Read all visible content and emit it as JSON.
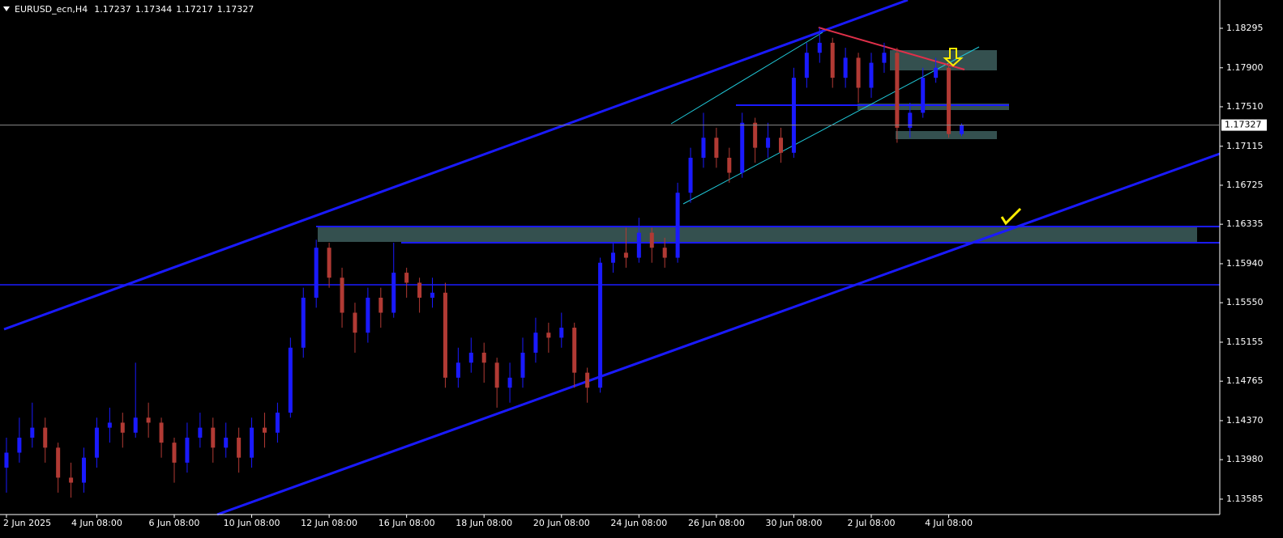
{
  "chart_data": {
    "type": "candlestick",
    "title": "EURUSD_ecn,H4",
    "bull_color": "#1a1aff",
    "bear_color": "#b13a34",
    "grid": false,
    "ylim": [
      1.13431,
      1.18578
    ],
    "yticks": [
      1.18295,
      {
        "value": 1.179,
        "label": "1.17900"
      },
      {
        "value": 1.1751,
        "label": "1.17510"
      },
      1.17115,
      1.16725,
      1.16335,
      {
        "value": 1.1594,
        "label": "1.15940"
      },
      {
        "value": 1.1555,
        "label": "1.15550"
      },
      1.15155,
      1.14765,
      {
        "value": 1.1437,
        "label": "1.14370"
      },
      {
        "value": 1.1398,
        "label": "1.13980"
      },
      1.13585
    ],
    "xlim": [
      -1,
      188
    ],
    "xticks": [
      {
        "value": 0,
        "label": "2 Jun 2025"
      },
      {
        "value": 14,
        "label": "4 Jun 08:00"
      },
      {
        "value": 26,
        "label": "6 Jun 08:00"
      },
      {
        "value": 38,
        "label": "10 Jun 08:00"
      },
      {
        "value": 50,
        "label": "12 Jun 08:00"
      },
      {
        "value": 62,
        "label": "16 Jun 08:00"
      },
      {
        "value": 74,
        "label": "18 Jun 08:00"
      },
      {
        "value": 86,
        "label": "20 Jun 08:00"
      },
      {
        "value": 98,
        "label": "24 Jun 08:00"
      },
      {
        "value": 110,
        "label": "26 Jun 08:00"
      },
      {
        "value": 122,
        "label": "30 Jun 08:00"
      },
      {
        "value": 134,
        "label": "2 Jul 08:00"
      },
      {
        "value": 146,
        "label": "4 Jul 08:00"
      }
    ],
    "x": [
      0,
      2,
      4,
      6,
      8,
      10,
      12,
      14,
      16,
      18,
      20,
      22,
      24,
      26,
      28,
      30,
      32,
      34,
      36,
      38,
      40,
      42,
      44,
      46,
      48,
      50,
      52,
      54,
      56,
      58,
      60,
      62,
      64,
      66,
      68,
      70,
      72,
      74,
      76,
      78,
      80,
      82,
      84,
      86,
      88,
      90,
      92,
      94,
      96,
      98,
      100,
      102,
      104,
      106,
      108,
      110,
      112,
      114,
      116,
      118,
      120,
      122,
      124,
      126,
      128,
      130,
      132,
      134,
      136,
      138,
      140,
      142,
      144,
      146,
      148
    ],
    "open": [
      1.139,
      1.1405,
      1.142,
      1.143,
      1.141,
      1.138,
      1.1375,
      1.14,
      1.143,
      1.1435,
      1.1425,
      1.144,
      1.1435,
      1.1415,
      1.1395,
      1.142,
      1.143,
      1.141,
      1.142,
      1.14,
      1.143,
      1.1425,
      1.1445,
      1.151,
      1.156,
      1.161,
      1.158,
      1.1545,
      1.1525,
      1.156,
      1.1545,
      1.1585,
      1.1575,
      1.156,
      1.1565,
      1.148,
      1.1495,
      1.1505,
      1.1495,
      1.147,
      1.148,
      1.1505,
      1.1525,
      1.152,
      1.153,
      1.1485,
      1.147,
      1.1595,
      1.1605,
      1.16,
      1.1625,
      1.161,
      1.16,
      1.1665,
      1.17,
      1.172,
      1.17,
      1.1685,
      1.1735,
      1.171,
      1.172,
      1.1705,
      1.178,
      1.1805,
      1.1815,
      1.178,
      1.18,
      1.177,
      1.1795,
      1.1805,
      1.173,
      1.1745,
      1.178,
      1.179,
      1.17237
    ],
    "high": [
      1.142,
      1.144,
      1.1455,
      1.144,
      1.1415,
      1.1395,
      1.141,
      1.144,
      1.145,
      1.1445,
      1.1495,
      1.1455,
      1.144,
      1.142,
      1.1435,
      1.1445,
      1.144,
      1.1435,
      1.143,
      1.144,
      1.1445,
      1.1455,
      1.152,
      1.157,
      1.1618,
      1.1615,
      1.159,
      1.1555,
      1.157,
      1.157,
      1.1615,
      1.159,
      1.158,
      1.158,
      1.1575,
      1.151,
      1.152,
      1.1515,
      1.15,
      1.1495,
      1.152,
      1.154,
      1.1535,
      1.1545,
      1.1535,
      1.149,
      1.16,
      1.1615,
      1.163,
      1.164,
      1.163,
      1.162,
      1.1675,
      1.171,
      1.1745,
      1.173,
      1.171,
      1.1745,
      1.174,
      1.1735,
      1.173,
      1.179,
      1.1815,
      1.183,
      1.182,
      1.181,
      1.1805,
      1.1805,
      1.1815,
      1.181,
      1.1755,
      1.179,
      1.18,
      1.1795,
      1.17344
    ],
    "low": [
      1.1365,
      1.1395,
      1.141,
      1.1395,
      1.1365,
      1.136,
      1.1365,
      1.139,
      1.1415,
      1.141,
      1.142,
      1.142,
      1.14,
      1.1375,
      1.1385,
      1.141,
      1.1395,
      1.14,
      1.1385,
      1.139,
      1.141,
      1.1415,
      1.144,
      1.15,
      1.155,
      1.157,
      1.153,
      1.1505,
      1.1515,
      1.153,
      1.154,
      1.156,
      1.1545,
      1.155,
      1.147,
      1.147,
      1.1485,
      1.1475,
      1.145,
      1.1455,
      1.147,
      1.1495,
      1.1505,
      1.151,
      1.147,
      1.1455,
      1.1465,
      1.1585,
      1.159,
      1.1595,
      1.1595,
      1.159,
      1.1595,
      1.1655,
      1.169,
      1.169,
      1.1675,
      1.168,
      1.1695,
      1.17,
      1.1695,
      1.17,
      1.177,
      1.1795,
      1.177,
      1.177,
      1.1755,
      1.176,
      1.1785,
      1.1715,
      1.172,
      1.174,
      1.1775,
      1.172,
      1.17217
    ],
    "close": [
      1.1405,
      1.142,
      1.143,
      1.141,
      1.138,
      1.1375,
      1.14,
      1.143,
      1.1435,
      1.1425,
      1.144,
      1.1435,
      1.1415,
      1.1395,
      1.142,
      1.143,
      1.141,
      1.142,
      1.14,
      1.143,
      1.1425,
      1.1445,
      1.151,
      1.156,
      1.161,
      1.158,
      1.1545,
      1.1525,
      1.156,
      1.1545,
      1.1585,
      1.1575,
      1.156,
      1.1565,
      1.148,
      1.1495,
      1.1505,
      1.1495,
      1.147,
      1.148,
      1.1505,
      1.1525,
      1.152,
      1.153,
      1.1485,
      1.147,
      1.1595,
      1.1605,
      1.16,
      1.1625,
      1.161,
      1.16,
      1.1665,
      1.17,
      1.172,
      1.17,
      1.1685,
      1.1735,
      1.171,
      1.172,
      1.1705,
      1.178,
      1.1805,
      1.1815,
      1.178,
      1.18,
      1.177,
      1.1795,
      1.1805,
      1.173,
      1.1745,
      1.178,
      1.179,
      1.17237,
      1.17327
    ]
  }
}
